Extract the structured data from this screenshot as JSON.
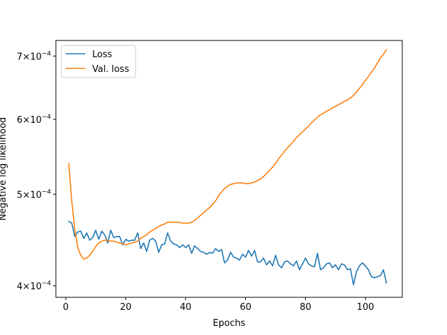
{
  "chart_data": {
    "type": "line",
    "xlabel": "Epochs",
    "ylabel": "Negative log likelihood",
    "yscale": "log",
    "xlim": [
      -3.3,
      112.3
    ],
    "ylim": [
      0.000389,
      0.000727
    ],
    "x_ticks": [
      0,
      20,
      40,
      60,
      80,
      100
    ],
    "y_ticks": [
      {
        "value": 0.0004,
        "mantissa": "4",
        "exponent": "−4"
      },
      {
        "value": 0.0005,
        "mantissa": "5",
        "exponent": "−4"
      },
      {
        "value": 0.0006,
        "mantissa": "6",
        "exponent": "−4"
      },
      {
        "value": 0.0007,
        "mantissa": "7",
        "exponent": "−4"
      }
    ],
    "tick_suffix": "×10",
    "legend_position": "upper left",
    "grid": false,
    "series": [
      {
        "name": "Loss",
        "color": "#1f77b4",
        "x": [
          1,
          2,
          3,
          4,
          5,
          6,
          7,
          8,
          9,
          10,
          11,
          12,
          13,
          14,
          15,
          16,
          17,
          18,
          19,
          20,
          21,
          22,
          23,
          24,
          25,
          26,
          27,
          28,
          29,
          30,
          31,
          32,
          33,
          34,
          35,
          36,
          37,
          38,
          39,
          40,
          41,
          42,
          43,
          44,
          45,
          46,
          47,
          48,
          49,
          50,
          51,
          52,
          53,
          54,
          55,
          56,
          57,
          58,
          59,
          60,
          61,
          62,
          63,
          64,
          65,
          66,
          67,
          68,
          69,
          70,
          71,
          72,
          73,
          74,
          75,
          76,
          77,
          78,
          79,
          80,
          81,
          82,
          83,
          84,
          85,
          86,
          87,
          88,
          89,
          90,
          91,
          92,
          93,
          94,
          95,
          96,
          97,
          98,
          99,
          100,
          101,
          102,
          103,
          104,
          105,
          106,
          107
        ],
        "y": [
          0.000468,
          0.000466,
          0.000451,
          0.000456,
          0.000457,
          0.000449,
          0.000455,
          0.000447,
          0.00045,
          0.000458,
          0.000448,
          0.000457,
          0.000453,
          0.000444,
          0.000458,
          0.00045,
          0.000451,
          0.000451,
          0.000442,
          0.000448,
          0.000446,
          0.000447,
          0.000447,
          0.000455,
          0.000438,
          0.000444,
          0.000435,
          0.000447,
          0.000449,
          0.000446,
          0.000434,
          0.000442,
          0.000443,
          0.000455,
          0.000446,
          0.000443,
          0.000442,
          0.000439,
          0.000442,
          0.000439,
          0.000442,
          0.000433,
          0.000441,
          0.000438,
          0.000435,
          0.000434,
          0.000432,
          0.000434,
          0.000433,
          0.000438,
          0.000435,
          0.000437,
          0.000423,
          0.000426,
          0.000434,
          0.000429,
          0.000428,
          0.000426,
          0.000432,
          0.000429,
          0.000436,
          0.00043,
          0.000436,
          0.000424,
          0.000424,
          0.000428,
          0.000421,
          0.000425,
          0.00042,
          0.000431,
          0.000421,
          0.000418,
          0.000424,
          0.000425,
          0.000422,
          0.00042,
          0.000425,
          0.000416,
          0.000422,
          0.000428,
          0.000422,
          0.00042,
          0.000419,
          0.000433,
          0.000416,
          0.000418,
          0.000422,
          0.000423,
          0.000418,
          0.000421,
          0.000416,
          0.000422,
          0.000421,
          0.000416,
          0.000417,
          0.000401,
          0.000414,
          0.00042,
          0.000423,
          0.00042,
          0.000416,
          0.000409,
          0.000408,
          0.000409,
          0.00041,
          0.000416,
          0.000403
        ]
      },
      {
        "name": "Val. loss",
        "color": "#ff7f0e",
        "x": [
          1,
          2,
          3,
          4,
          5,
          6,
          7,
          8,
          9,
          10,
          11,
          12,
          13,
          14,
          15,
          16,
          17,
          18,
          19,
          20,
          21,
          22,
          23,
          24,
          25,
          26,
          27,
          28,
          29,
          30,
          31,
          32,
          33,
          34,
          35,
          36,
          37,
          38,
          39,
          40,
          41,
          42,
          43,
          44,
          45,
          46,
          47,
          48,
          49,
          50,
          51,
          52,
          53,
          54,
          55,
          56,
          57,
          58,
          59,
          60,
          61,
          62,
          63,
          64,
          65,
          66,
          67,
          68,
          69,
          70,
          71,
          72,
          73,
          74,
          75,
          76,
          77,
          78,
          79,
          80,
          81,
          82,
          83,
          84,
          85,
          86,
          87,
          88,
          89,
          90,
          91,
          92,
          93,
          94,
          95,
          96,
          97,
          98,
          99,
          100,
          101,
          102,
          103,
          104,
          105,
          106,
          107
        ],
        "y": [
          0.000539,
          0.000492,
          0.000459,
          0.000439,
          0.000431,
          0.000427,
          0.000428,
          0.000431,
          0.000435,
          0.00044,
          0.000444,
          0.000446,
          0.000447,
          0.000447,
          0.000446,
          0.000446,
          0.000445,
          0.000444,
          0.000443,
          0.000442,
          0.000443,
          0.000444,
          0.000445,
          0.000446,
          0.000449,
          0.000451,
          0.000453,
          0.000456,
          0.000458,
          0.00046,
          0.000462,
          0.000464,
          0.000465,
          0.000467,
          0.000467,
          0.000467,
          0.000467,
          0.000467,
          0.000466,
          0.000466,
          0.000466,
          0.000467,
          0.000469,
          0.000472,
          0.000475,
          0.000478,
          0.000481,
          0.000484,
          0.000488,
          0.000492,
          0.000498,
          0.000503,
          0.000507,
          0.00051,
          0.000512,
          0.000513,
          0.000514,
          0.000514,
          0.000514,
          0.000513,
          0.000513,
          0.000514,
          0.000515,
          0.000517,
          0.000519,
          0.000522,
          0.000526,
          0.00053,
          0.000534,
          0.000539,
          0.000545,
          0.00055,
          0.000555,
          0.00056,
          0.000564,
          0.000569,
          0.000574,
          0.000578,
          0.000582,
          0.000586,
          0.00059,
          0.000595,
          0.000599,
          0.000603,
          0.000607,
          0.000609,
          0.000612,
          0.000614,
          0.000617,
          0.000619,
          0.000622,
          0.000624,
          0.000627,
          0.000629,
          0.000632,
          0.000636,
          0.000641,
          0.000647,
          0.000653,
          0.00066,
          0.000666,
          0.000673,
          0.00068,
          0.000688,
          0.000697,
          0.000703,
          0.000711
        ]
      }
    ]
  }
}
